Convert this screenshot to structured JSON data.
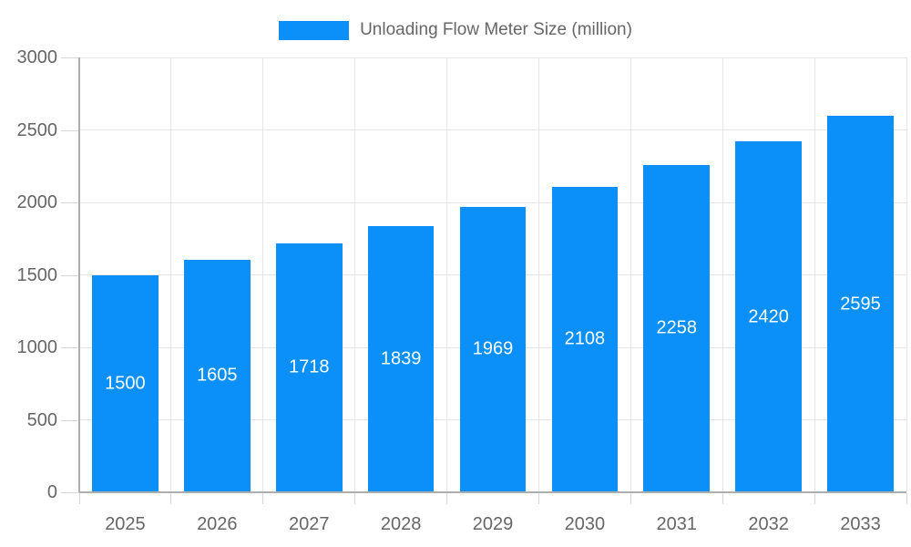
{
  "legend": {
    "label": "Unloading Flow Meter Size (million)"
  },
  "chart_data": {
    "type": "bar",
    "title": "Unloading Flow Meter Size (million)",
    "series_name": "Unloading Flow Meter Size (million)",
    "categories": [
      "2025",
      "2026",
      "2027",
      "2028",
      "2029",
      "2030",
      "2031",
      "2032",
      "2033"
    ],
    "values": [
      1500,
      1605,
      1718,
      1839,
      1969,
      2108,
      2258,
      2420,
      2595
    ],
    "xlabel": "",
    "ylabel": "",
    "ylim": [
      0,
      3000
    ],
    "y_ticks": [
      0,
      500,
      1000,
      1500,
      2000,
      2500,
      3000
    ],
    "grid": true,
    "legend_position": "top",
    "value_labels": "inside-center"
  },
  "colors": {
    "bar": "#0b8ff9",
    "legend_text": "#666666",
    "axis_text": "#666666",
    "value_label": "#ffffff",
    "axis_line": "#aeaeae",
    "grid_line": "#e6e6e6",
    "tick_line": "#d6d6d6",
    "background": "#ffffff"
  }
}
